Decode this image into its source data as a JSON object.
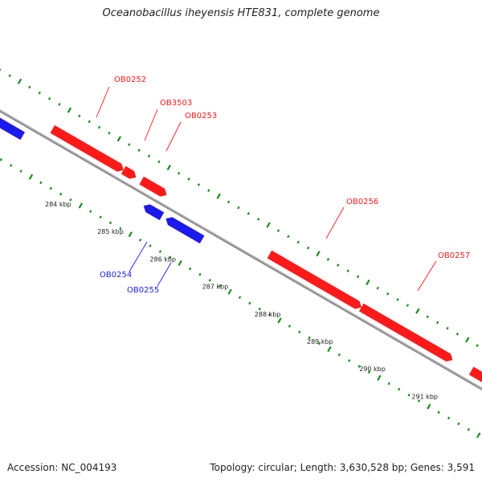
{
  "title": "Oceanobacillus iheyensis HTE831, complete genome",
  "footer": {
    "accession": "Accession: NC_004193",
    "topology": "Topology: circular; Length: 3,630,528 bp; Genes: 3,591"
  },
  "colors": {
    "forward": "#ff1a1a",
    "reverse": "#1a1aee",
    "backbone": "#8c8c8c",
    "ticks": "#1e8c1e"
  },
  "tick_labels": [
    "284 kbp",
    "285 kbp",
    "286 kbp",
    "287 kbp",
    "288 kbp",
    "289 kbp",
    "290 kbp",
    "291 kbp"
  ],
  "genes": [
    {
      "label": "OB0252",
      "strand": "forward"
    },
    {
      "label": "OB3503",
      "strand": "forward"
    },
    {
      "label": "OB0253",
      "strand": "forward"
    },
    {
      "label": "OB0256",
      "strand": "forward"
    },
    {
      "label": "OB0257",
      "strand": "forward"
    },
    {
      "label": "OB0254",
      "strand": "reverse"
    },
    {
      "label": "OB0255",
      "strand": "reverse"
    }
  ]
}
